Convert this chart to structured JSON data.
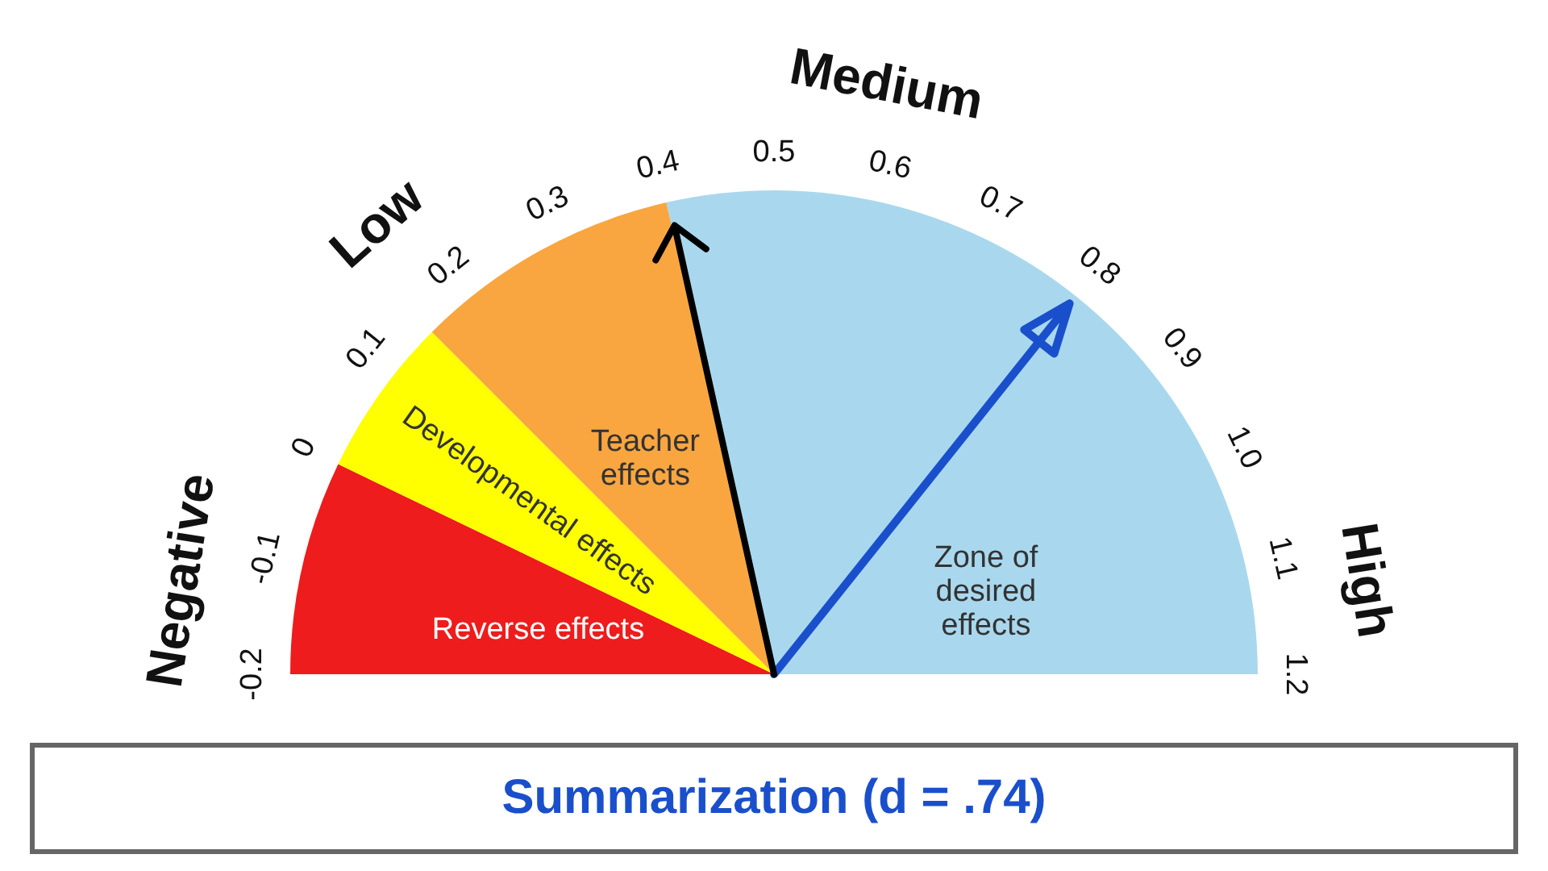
{
  "chart_data": {
    "type": "pie",
    "title": "Summarization (d = .74)",
    "categories": [
      "Reverse effects",
      "Developmental effects",
      "Teacher effects",
      "Zone of desired effects"
    ],
    "values": [
      14.29,
      10.71,
      17.86,
      57.14
    ],
    "colors": [
      "#ee1c1c",
      "#ffff00",
      "#f9a640",
      "#a9d8ee"
    ],
    "needle": "Zone of desired effects",
    "annotations": [
      "Negative",
      "Low",
      "Medium",
      "High",
      "-0.2",
      "-0.1",
      "0",
      "0.1",
      "0.2",
      "0.3",
      "0.4",
      "0.5",
      "0.6",
      "0.7",
      "0.8",
      "0.9",
      "1.0",
      "1.1",
      "1.2"
    ]
  }
}
